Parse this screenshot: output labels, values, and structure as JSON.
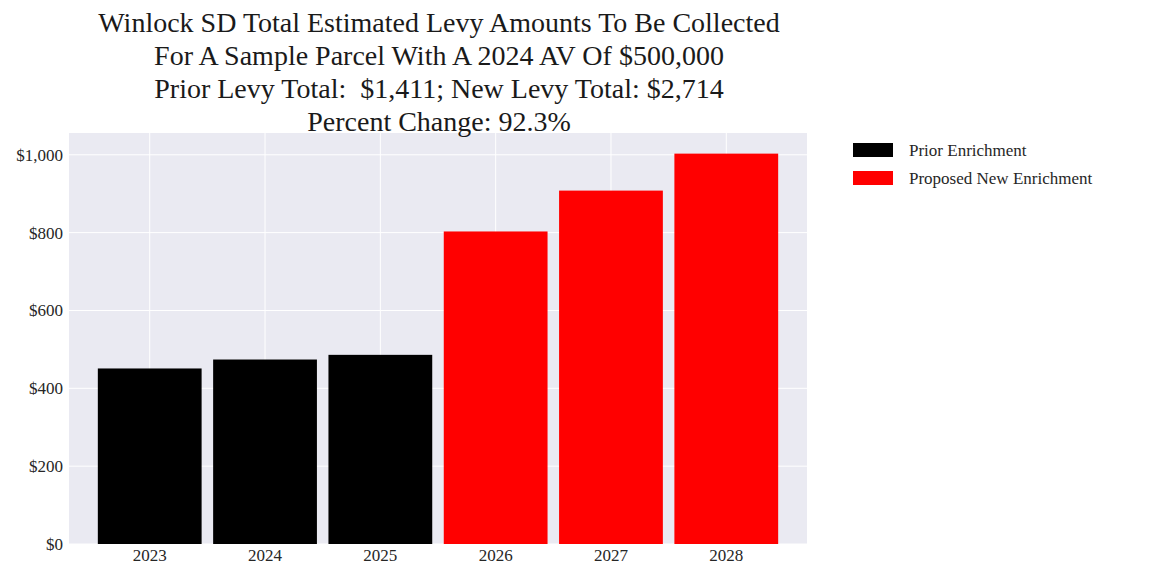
{
  "chart_data": {
    "type": "bar",
    "title": [
      "Winlock SD Total Estimated Levy Amounts To Be Collected",
      "For A Sample Parcel With A 2024 AV Of $500,000",
      "Prior Levy Total:  $1,411; New Levy Total: $2,714",
      "Percent Change: 92.3%"
    ],
    "categories": [
      "2023",
      "2024",
      "2025",
      "2026",
      "2027",
      "2028"
    ],
    "series": [
      {
        "name": "Prior Enrichment",
        "color": "#000000",
        "values": [
          451,
          474,
          486,
          null,
          null,
          null
        ]
      },
      {
        "name": "Proposed New Enrichment",
        "color": "#ff0000",
        "values": [
          null,
          null,
          null,
          803,
          908,
          1003
        ]
      }
    ],
    "ylim": [
      0,
      1056
    ],
    "yticks": [
      {
        "value": 0,
        "label": "$0"
      },
      {
        "value": 200,
        "label": "$200"
      },
      {
        "value": 400,
        "label": "$400"
      },
      {
        "value": 600,
        "label": "$600"
      },
      {
        "value": 800,
        "label": "$800"
      },
      {
        "value": 1000,
        "label": "$1,000"
      }
    ],
    "grid": true,
    "legend": "right"
  }
}
